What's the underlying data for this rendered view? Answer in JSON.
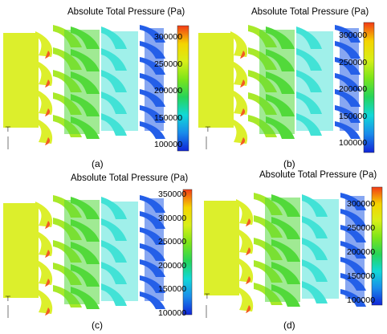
{
  "colorbar_colors": [
    "#f23a16",
    "#f5d400",
    "#d8ef18",
    "#7be51a",
    "#26d45a",
    "#11d8d8",
    "#1a8bea",
    "#1025d8"
  ],
  "zone_colors": {
    "stage1": "#dcef2c",
    "stage2": "#52d93a",
    "stage3": "#42e2d6",
    "stage4": "#245fe8",
    "hot": "#f25c22"
  },
  "panels": [
    {
      "title": "Absolute Total Pressure (Pa)",
      "caption": "(a)",
      "ticks": [
        "300000",
        "250000",
        "200000",
        "150000",
        "100000"
      ]
    },
    {
      "title": "Absolute Total Pressure (Pa)",
      "caption": "(b)",
      "ticks": [
        "300000",
        "250000",
        "200000",
        "150000",
        "100000"
      ]
    },
    {
      "title": "Absolute Total Pressure (Pa)",
      "caption": "(c)",
      "ticks": [
        "350000",
        "300000",
        "250000",
        "200000",
        "150000",
        "100000"
      ]
    },
    {
      "title": "Absolute Total Pressure (Pa)",
      "caption": "(d)",
      "ticks": [
        "300000",
        "250000",
        "200000",
        "150000",
        "100000"
      ]
    }
  ]
}
